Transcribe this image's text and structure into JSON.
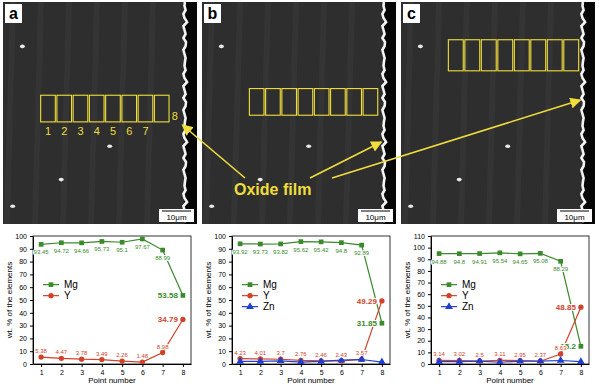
{
  "images": [
    {
      "label": "a",
      "region_labels": [
        1,
        2,
        3,
        4,
        5,
        6,
        7,
        8
      ],
      "scale_bar": "10μm"
    },
    {
      "label": "b",
      "scale_bar": "10μm"
    },
    {
      "label": "c",
      "scale_bar": "10μm"
    }
  ],
  "annotation": "Oxide film",
  "chart_data": [
    {
      "type": "line",
      "xlabel": "Point number",
      "ylabel": "wt. % of the elements",
      "x": [
        1,
        2,
        3,
        4,
        5,
        6,
        7,
        8
      ],
      "xlim": [
        0.6,
        8.4
      ],
      "xticks": [
        1,
        2,
        3,
        4,
        5,
        6,
        7,
        8
      ],
      "ylim": [
        0,
        100
      ],
      "yticks": [
        0,
        10,
        20,
        30,
        40,
        50,
        60,
        70,
        80,
        90,
        100
      ],
      "legend": "left",
      "data_labels": true,
      "series": [
        {
          "name": "Mg",
          "color": "#3a8a2c",
          "marker": "square",
          "line_style": "solid",
          "values": [
            93.45,
            94.72,
            94.66,
            95.73,
            95.1,
            97.67,
            88.99,
            53.58
          ]
        },
        {
          "name": "Y",
          "color": "#d0432a",
          "marker": "circle",
          "line_style": "solid",
          "values": [
            5.38,
            4.47,
            3.78,
            3.49,
            2.26,
            1.48,
            8.98,
            34.79
          ]
        }
      ]
    },
    {
      "type": "line",
      "xlabel": "Point number",
      "ylabel": "wt. % of the elements",
      "x": [
        1,
        2,
        3,
        4,
        5,
        6,
        7,
        8
      ],
      "xlim": [
        0.6,
        8.4
      ],
      "xticks": [
        1,
        2,
        3,
        4,
        5,
        6,
        7,
        8
      ],
      "ylim": [
        0,
        100
      ],
      "yticks": [
        0,
        10,
        20,
        30,
        40,
        50,
        60,
        70,
        80,
        90,
        100
      ],
      "legend": "left",
      "data_labels": true,
      "series": [
        {
          "name": "Mg",
          "color": "#3a8a2c",
          "marker": "square",
          "line_style": "solid",
          "values": [
            93.92,
            93.73,
            93.82,
            95.62,
            95.42,
            94.8,
            92.89,
            31.85
          ]
        },
        {
          "name": "Y",
          "color": "#d0432a",
          "marker": "circle",
          "line_style": "solid",
          "values": [
            4.23,
            4.01,
            3.7,
            2.76,
            2.46,
            2.43,
            3.57,
            49.29
          ]
        },
        {
          "name": "Zn",
          "color": "#1f3fcf",
          "marker": "triangle",
          "line_style": "solid",
          "data_labels": false,
          "values": [
            2,
            2,
            2.5,
            1.5,
            2,
            3,
            3.5,
            1.5
          ]
        }
      ]
    },
    {
      "type": "line",
      "xlabel": "Point number",
      "ylabel": "wt. % of the elements",
      "x": [
        1,
        2,
        3,
        4,
        5,
        6,
        7,
        8
      ],
      "xlim": [
        0.6,
        8.4
      ],
      "xticks": [
        1,
        2,
        3,
        4,
        5,
        6,
        7,
        8
      ],
      "ylim": [
        0,
        110
      ],
      "yticks": [
        0,
        10,
        20,
        30,
        40,
        50,
        60,
        70,
        80,
        90,
        100,
        110
      ],
      "legend": "left",
      "data_labels": true,
      "series": [
        {
          "name": "Mg",
          "color": "#3a8a2c",
          "marker": "square",
          "line_style": "solid",
          "values": [
            94.88,
            94.8,
            94.91,
            95.54,
            94.65,
            95.08,
            88.29,
            15.2
          ]
        },
        {
          "name": "Y",
          "color": "#d0432a",
          "marker": "circle",
          "line_style": "solid",
          "values": [
            3.14,
            3.02,
            2.5,
            3.11,
            2.95,
            2.37,
            8.63,
            48.85
          ]
        },
        {
          "name": "Zn",
          "color": "#1f3fcf",
          "marker": "triangle",
          "line_style": "solid",
          "data_labels": false,
          "values": [
            2,
            2,
            2.5,
            1.5,
            2.5,
            2.5,
            3,
            2
          ]
        }
      ]
    }
  ]
}
